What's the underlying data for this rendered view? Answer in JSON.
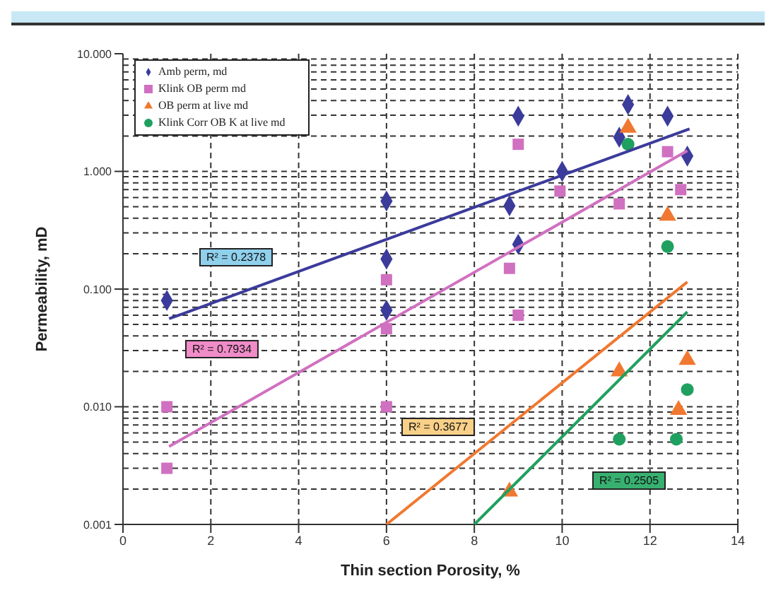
{
  "chart_data": {
    "type": "scatter",
    "xlabel": "Thin section Porosity, %",
    "ylabel": "Permeability, mD",
    "xlim": [
      0,
      14
    ],
    "xticks": [
      0,
      2,
      4,
      6,
      8,
      10,
      12,
      14
    ],
    "ylim": [
      0.001,
      10
    ],
    "yticks": [
      {
        "value": 0.001,
        "label": "0.001"
      },
      {
        "value": 0.01,
        "label": "0.010"
      },
      {
        "value": 0.1,
        "label": "0.100"
      },
      {
        "value": 1,
        "label": "1.000"
      },
      {
        "value": 10,
        "label": "10.000"
      }
    ],
    "log": "y",
    "grid": true,
    "legend": "top left",
    "series": [
      {
        "name": "Amb perm, md",
        "color": "#3b3b9c",
        "marker": "diamond",
        "x": [
          1,
          6,
          6,
          6,
          9,
          8.8,
          10,
          11.3,
          11.5,
          12.4,
          12.85,
          9
        ],
        "values": [
          0.08,
          0.56,
          0.18,
          0.066,
          2.95,
          0.51,
          1.0,
          1.95,
          3.7,
          2.95,
          1.35,
          0.24
        ]
      },
      {
        "name": "Klink OB perm md",
        "color": "#d070c0",
        "marker": "square",
        "x": [
          1,
          1,
          6,
          6,
          6,
          9,
          9.95,
          11.3,
          12.4,
          12.7,
          8.8,
          9
        ],
        "values": [
          0.01,
          0.003,
          0.12,
          0.046,
          0.01,
          1.7,
          0.68,
          0.53,
          1.47,
          0.7,
          0.15,
          0.06
        ]
      },
      {
        "name": "OB perm at live md",
        "color": "#f07830",
        "marker": "triangle",
        "x": [
          11.5,
          12.4,
          11.3,
          12.85,
          12.65,
          8.8
        ],
        "values": [
          2.35,
          0.42,
          0.02,
          0.025,
          0.0094,
          0.0019
        ]
      },
      {
        "name": "Klink Corr OB K at live md",
        "color": "#20a060",
        "marker": "circle",
        "x": [
          11.5,
          12.4,
          12.85,
          11.3,
          12.6
        ],
        "values": [
          1.7,
          0.23,
          0.014,
          0.0053,
          0.0053
        ]
      },
      {
        "type": "line",
        "color": "#3b3b9c",
        "marker": "none",
        "x": [
          1.05,
          12.9
        ],
        "values": [
          0.056,
          2.3
        ]
      },
      {
        "type": "line",
        "color": "#d070c0",
        "marker": "none",
        "x": [
          1.05,
          12.85
        ],
        "values": [
          0.0046,
          1.5
        ]
      },
      {
        "type": "line",
        "color": "#f07830",
        "marker": "none",
        "x": [
          6,
          12.85
        ],
        "values": [
          0.001,
          0.115
        ]
      },
      {
        "type": "line",
        "color": "#20a060",
        "marker": "none",
        "x": [
          8,
          12.85
        ],
        "values": [
          0.001,
          0.064
        ]
      }
    ],
    "annotations": [
      "R² = 0.2378",
      "R² = 0.7934",
      "R² = 0.3677",
      "R² = 0.2505"
    ]
  }
}
